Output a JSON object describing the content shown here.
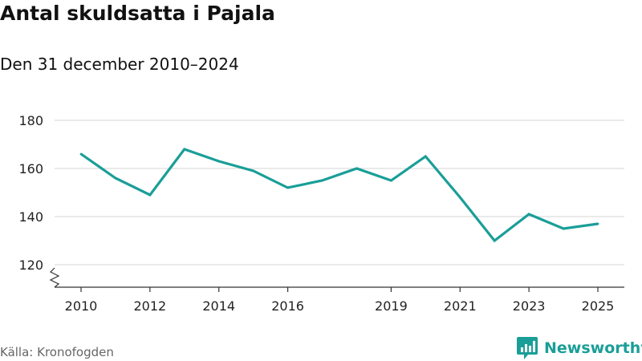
{
  "title": "Antal skuldsatta i Pajala",
  "subtitle": "Den 31 december 2010–2024",
  "source": "Källa: Kronofogden",
  "brand": {
    "name": "Newsworthy",
    "icon": "newsworthy-logo-icon",
    "color": "#1a9e98"
  },
  "colors": {
    "line": "#1a9e98",
    "grid": "#dddddd",
    "axis": "#333333"
  },
  "chart_data": {
    "type": "line",
    "title": "Antal skuldsatta i Pajala",
    "subtitle": "Den 31 december 2010–2024",
    "xlabel": "",
    "ylabel": "",
    "xlim": [
      2010,
      2025
    ],
    "ylim": [
      120,
      180
    ],
    "grid": true,
    "axis_break": true,
    "x_ticks": [
      2010,
      2012,
      2014,
      2016,
      2019,
      2021,
      2023,
      2025
    ],
    "y_ticks": [
      120,
      140,
      160,
      180
    ],
    "series": [
      {
        "name": "Antal skuldsatta",
        "x": [
          2010,
          2011,
          2012,
          2013,
          2014,
          2015,
          2016,
          2017,
          2018,
          2019,
          2020,
          2021,
          2022,
          2023,
          2024,
          2025
        ],
        "values": [
          166,
          156,
          149,
          168,
          163,
          159,
          152,
          155,
          160,
          155,
          165,
          148,
          130,
          141,
          135,
          137
        ]
      }
    ]
  }
}
